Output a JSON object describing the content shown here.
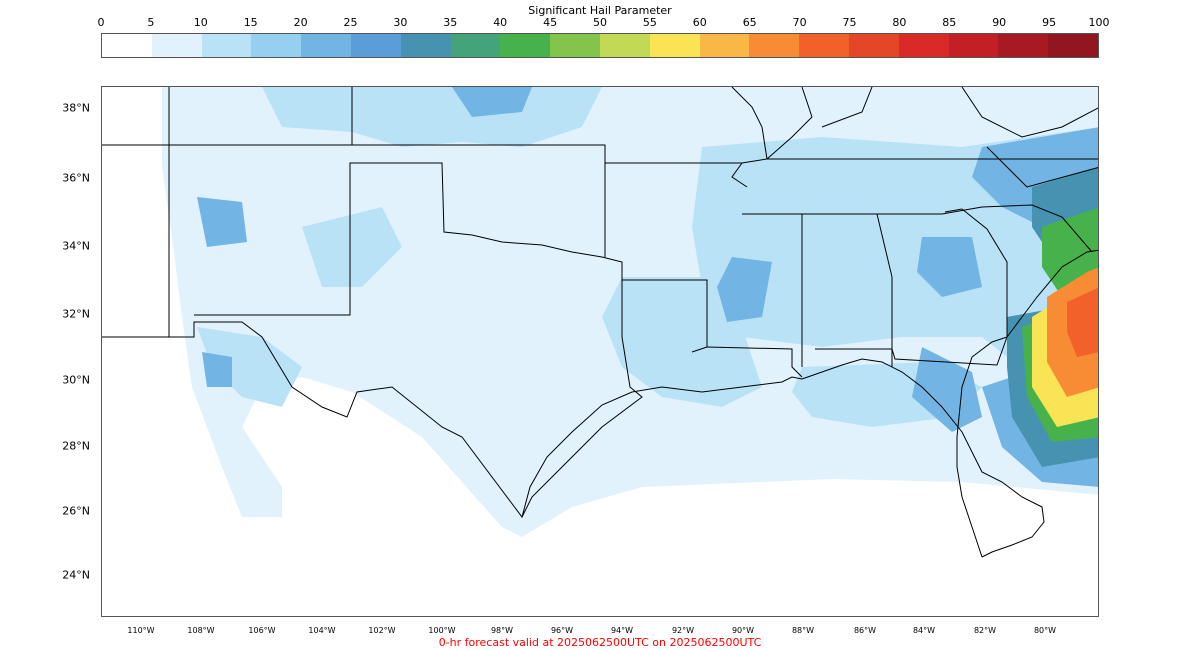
{
  "colorbar": {
    "title": "Significant Hail Parameter",
    "ticks": [
      "0",
      "5",
      "10",
      "15",
      "20",
      "25",
      "30",
      "35",
      "40",
      "45",
      "50",
      "55",
      "60",
      "65",
      "70",
      "75",
      "80",
      "85",
      "90",
      "95",
      "100"
    ],
    "colors": [
      "#ffffff",
      "#e1f2fd",
      "#b9e2f7",
      "#95d0f0",
      "#72b4e3",
      "#5b9ed7",
      "#4593b0",
      "#45a37a",
      "#47b24b",
      "#82c44c",
      "#c1d955",
      "#f9e455",
      "#f9b845",
      "#f88c35",
      "#f2612a",
      "#e44627",
      "#d92a28",
      "#c41f25",
      "#a71a21",
      "#911620"
    ]
  },
  "map": {
    "lat_labels": [
      "38°N",
      "36°N",
      "34°N",
      "32°N",
      "30°N",
      "28°N",
      "26°N",
      "24°N"
    ],
    "lon_labels": [
      "110°W",
      "108°W",
      "106°W",
      "104°W",
      "102°W",
      "100°W",
      "98°W",
      "96°W",
      "94°W",
      "92°W",
      "90°W",
      "88°W",
      "86°W",
      "84°W",
      "82°W",
      "80°W"
    ]
  },
  "footer": {
    "valid_text": "0-hr forecast valid at 2025062500UTC on 2025062500UTC"
  }
}
